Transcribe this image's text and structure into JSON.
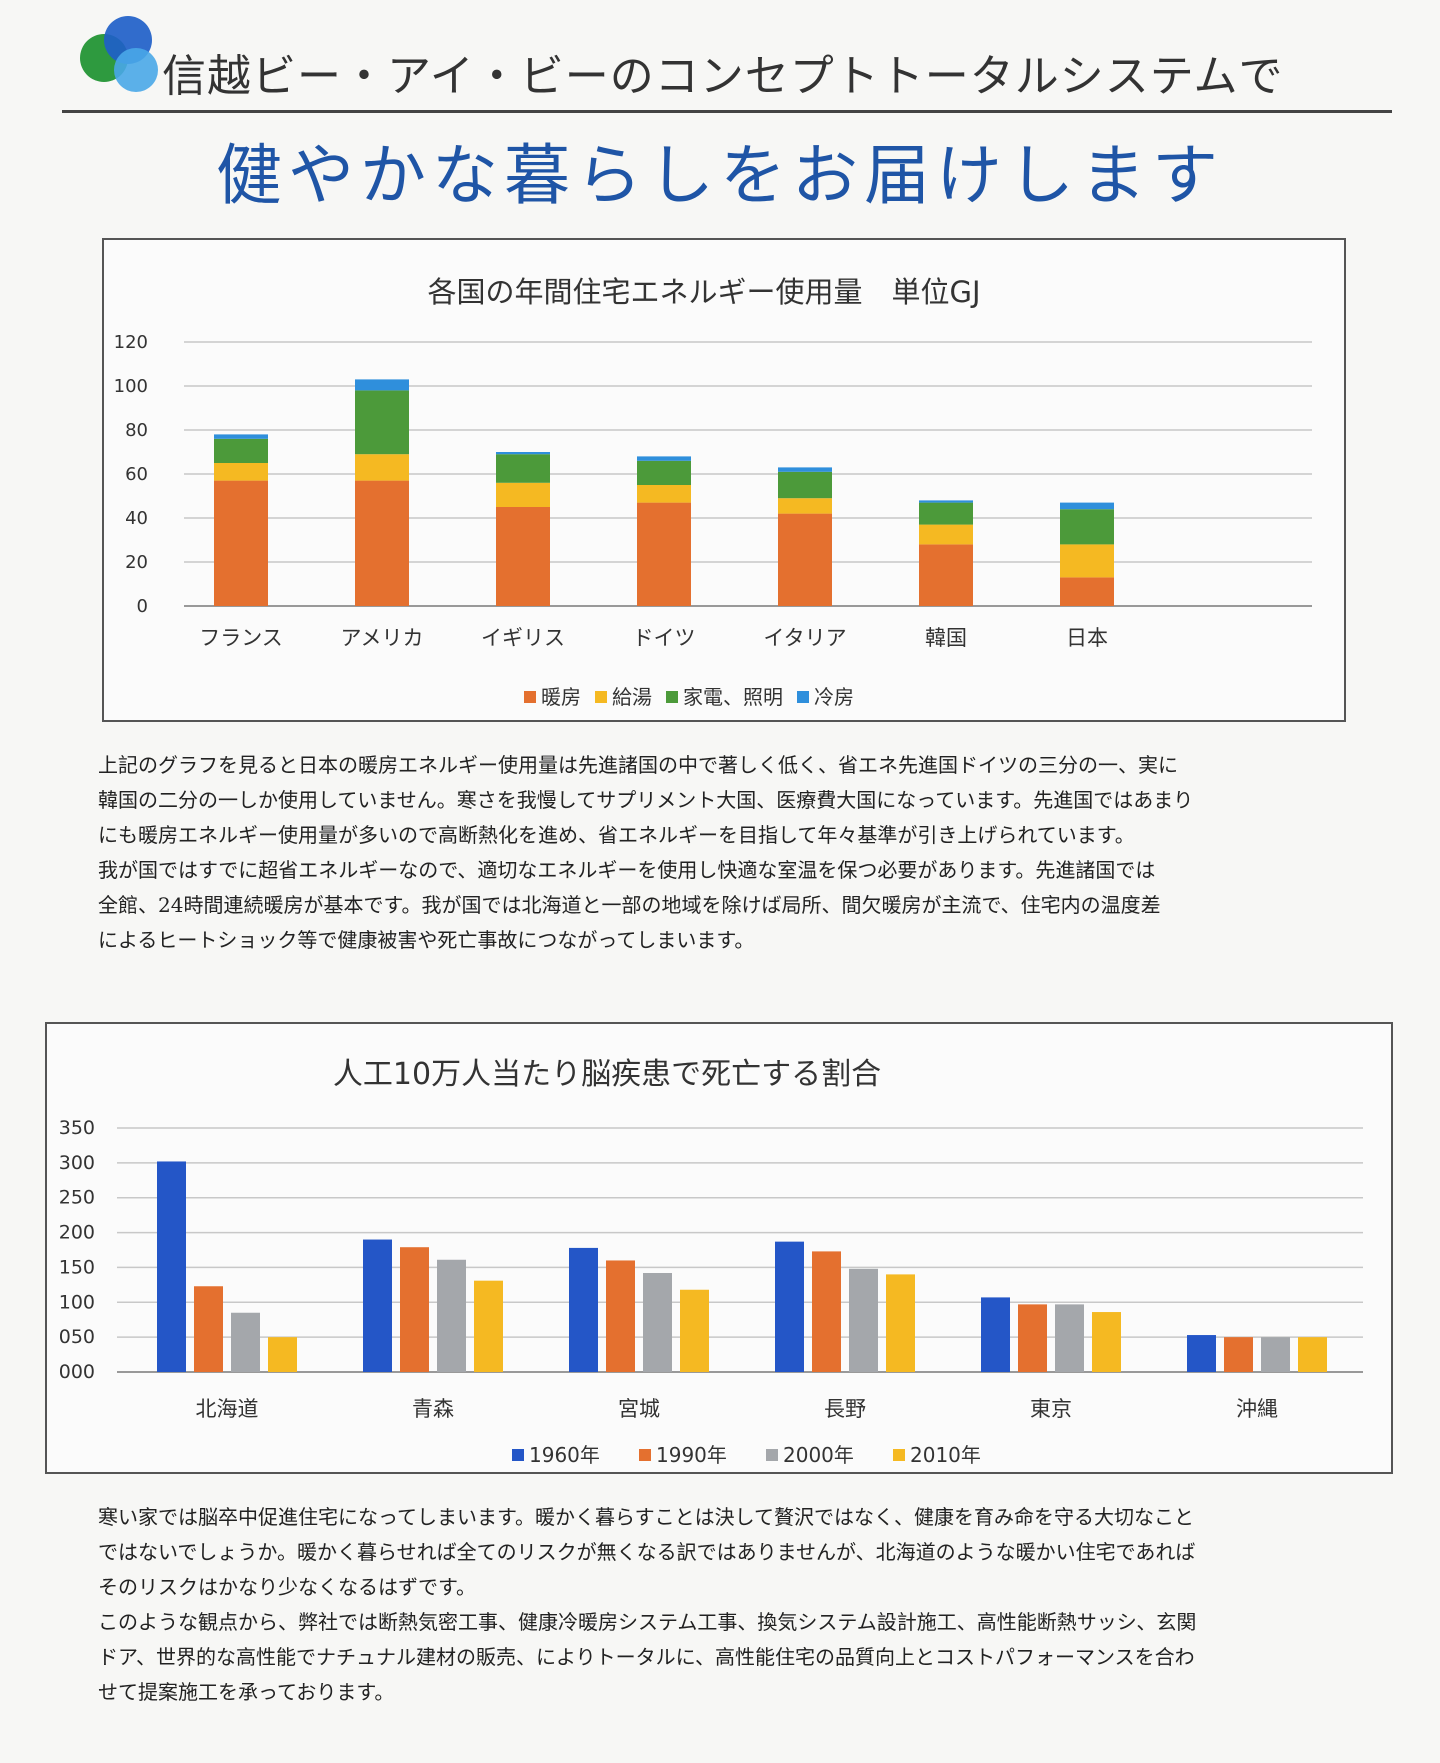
{
  "header": {
    "line": "信越ビー・アイ・ビーのコンセプトトータルシステムで",
    "title": "健やかな暮らしをお届けします"
  },
  "logo": {
    "icon": "three-circles-logo-icon",
    "colors": [
      "#2e9a3f",
      "#1f5fc8",
      "#49a7e8"
    ]
  },
  "energy_text": {
    "lines": [
      "上記のグラフを見ると日本の暖房エネルギー使用量は先進諸国の中で著しく低く、省エネ先進国ドイツの三分の一、実に",
      "韓国の二分の一しか使用していません。寒さを我慢してサプリメント大国、医療費大国になっています。先進国ではあまり",
      "にも暖房エネルギー使用量が多いので高断熱化を進め、省エネルギーを目指して年々基準が引き上げられています。",
      "我が国ではすでに超省エネルギーなので、適切なエネルギーを使用し快適な室温を保つ必要があります。先進諸国では",
      "全館、24時間連続暖房が基本です。我が国では北海道と一部の地域を除けば局所、間欠暖房が主流で、住宅内の温度差",
      "によるヒートショック等で健康被害や死亡事故につながってしまいます。"
    ]
  },
  "stroke_text": {
    "lines": [
      "寒い家では脳卒中促進住宅になってしまいます。暖かく暮らすことは決して贅沢ではなく、健康を育み命を守る大切なこと",
      "ではないでしょうか。暖かく暮らせれば全てのリスクが無くなる訳ではありませんが、北海道のような暖かい住宅であれば",
      "そのリスクはかなり少なくなるはずです。",
      "このような観点から、弊社では断熱気密工事、健康冷暖房システム工事、換気システム設計施工、高性能断熱サッシ、玄関",
      "ドア、世界的な高性能でナチュナル建材の販売、によりトータルに、高性能住宅の品質向上とコストパフォーマンスを合わ",
      "せて提案施工を承っております。"
    ]
  },
  "chart_data": [
    {
      "type": "bar",
      "stacked": true,
      "title": "各国の年間住宅エネルギー使用量　単位GJ",
      "categories": [
        "フランス",
        "アメリカ",
        "イギリス",
        "ドイツ",
        "イタリア",
        "韓国",
        "日本"
      ],
      "series": [
        {
          "name": "暖房",
          "color": "#e4702f",
          "values": [
            57,
            57,
            45,
            47,
            42,
            28,
            13
          ]
        },
        {
          "name": "給湯",
          "color": "#f5b922",
          "values": [
            8,
            12,
            11,
            8,
            7,
            9,
            15
          ]
        },
        {
          "name": "家電、照明",
          "color": "#4c9a3a",
          "values": [
            11,
            29,
            13,
            11,
            12,
            10,
            16
          ]
        },
        {
          "name": "冷房",
          "color": "#2f8fdc",
          "values": [
            2,
            5,
            1,
            2,
            2,
            1,
            3
          ]
        }
      ],
      "yticks": [
        "0",
        "20",
        "40",
        "60",
        "80",
        "100",
        "120"
      ],
      "ylim": [
        0,
        120
      ],
      "grid": true,
      "legend": "bottom"
    },
    {
      "type": "bar",
      "stacked": false,
      "title": "人工10万人当たり脳疾患で死亡する割合",
      "categories": [
        "北海道",
        "青森",
        "宮城",
        "長野",
        "東京",
        "沖縄"
      ],
      "series": [
        {
          "name": "1960年",
          "color": "#2456c7",
          "values": [
            302,
            190,
            178,
            187,
            107,
            53
          ]
        },
        {
          "name": "1990年",
          "color": "#e4702f",
          "values": [
            123,
            179,
            160,
            173,
            97,
            50
          ]
        },
        {
          "name": "2000年",
          "color": "#a4a7ab",
          "values": [
            85,
            161,
            142,
            148,
            97,
            50
          ]
        },
        {
          "name": "2010年",
          "color": "#f5b922",
          "values": [
            50,
            131,
            118,
            140,
            86,
            50
          ]
        }
      ],
      "yticks": [
        "000",
        "050",
        "100",
        "150",
        "200",
        "250",
        "300",
        "350"
      ],
      "ylim": [
        0,
        350
      ],
      "grid": true,
      "legend": "bottom"
    }
  ]
}
